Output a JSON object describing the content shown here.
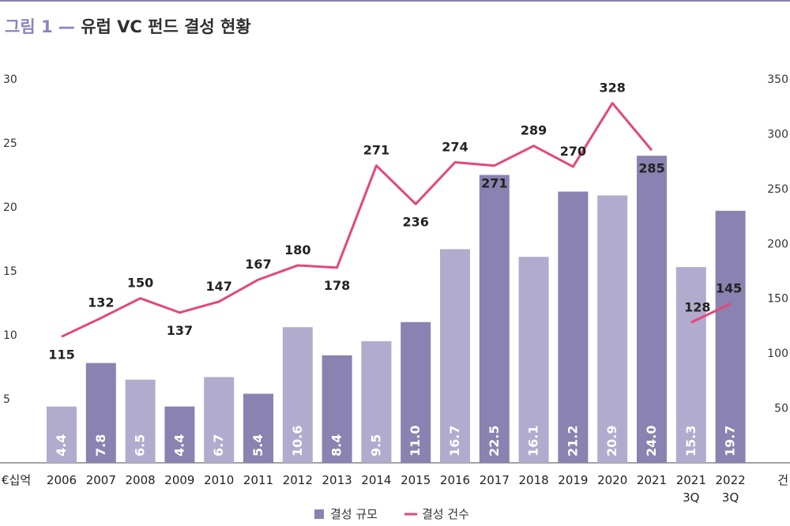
{
  "title": {
    "figure": "그림 1",
    "dash": "—",
    "text": "유럽 VC 펀드 결성 현황"
  },
  "colors": {
    "bar_light": "#b1abce",
    "bar_dark": "#8a82b0",
    "line": "#e5477a",
    "accent": "#8e82bf"
  },
  "chart_data": {
    "type": "bar",
    "categories": [
      "2006",
      "2007",
      "2008",
      "2009",
      "2010",
      "2011",
      "2012",
      "2013",
      "2014",
      "2015",
      "2016",
      "2017",
      "2018",
      "2019",
      "2020",
      "2021",
      "2021\n3Q",
      "2022\n3Q"
    ],
    "left_unit": "€십억",
    "right_unit": "건",
    "left_axis": {
      "ticks": [
        "5",
        "10",
        "15",
        "20",
        "25",
        "30"
      ],
      "values": [
        5,
        10,
        15,
        20,
        25,
        30
      ],
      "range": [
        0,
        30
      ]
    },
    "right_axis": {
      "ticks": [
        "50",
        "100",
        "150",
        "200",
        "250",
        "300",
        "350"
      ],
      "values": [
        50,
        100,
        150,
        200,
        250,
        300,
        350
      ],
      "range": [
        0,
        350
      ]
    },
    "series": [
      {
        "name": "결성 규모",
        "type": "bar",
        "axis": "left",
        "values": [
          4.4,
          7.8,
          6.5,
          4.4,
          6.7,
          5.4,
          10.6,
          8.4,
          9.5,
          11.0,
          16.7,
          22.5,
          16.1,
          21.2,
          20.9,
          24.0,
          15.3,
          19.7
        ],
        "labels": [
          "4.4",
          "7.8",
          "6.5",
          "4.4",
          "6.7",
          "5.4",
          "10.6",
          "8.4",
          "9.5",
          "11.0",
          "16.7",
          "22.5",
          "16.1",
          "21.2",
          "20.9",
          "24.0",
          "15.3",
          "19.7"
        ],
        "shade": [
          "light",
          "dark",
          "light",
          "dark",
          "light",
          "dark",
          "light",
          "dark",
          "light",
          "dark",
          "light",
          "dark",
          "light",
          "dark",
          "light",
          "dark",
          "light",
          "dark"
        ]
      },
      {
        "name": "결성 건수",
        "type": "line",
        "axis": "right",
        "values": [
          115,
          132,
          150,
          137,
          147,
          167,
          180,
          178,
          271,
          236,
          274,
          271,
          289,
          270,
          328,
          285,
          128,
          145
        ],
        "labels": [
          "115",
          "132",
          "150",
          "137",
          "147",
          "167",
          "180",
          "178",
          "271",
          "236",
          "274",
          "271",
          "289",
          "270",
          "328",
          "285",
          "128",
          "145"
        ],
        "segments": [
          [
            0,
            15
          ],
          [
            16,
            17
          ]
        ]
      }
    ],
    "legend": {
      "placement": "bottom",
      "items": [
        "결성 규모",
        "결성 건수"
      ]
    }
  }
}
